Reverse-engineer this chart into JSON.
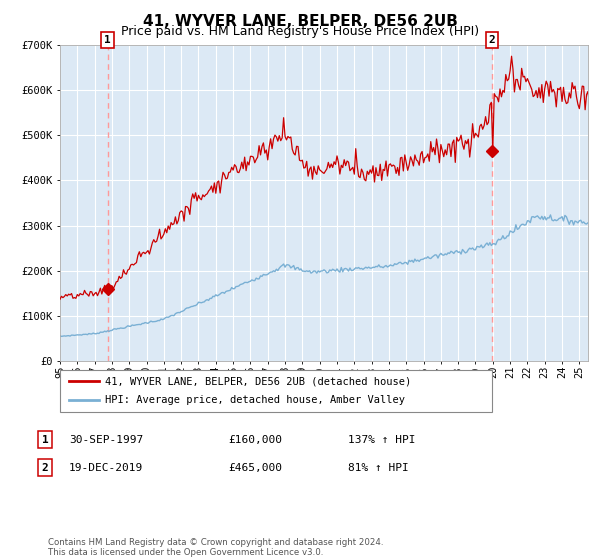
{
  "title": "41, WYVER LANE, BELPER, DE56 2UB",
  "subtitle": "Price paid vs. HM Land Registry's House Price Index (HPI)",
  "ylim": [
    0,
    700000
  ],
  "yticks": [
    0,
    100000,
    200000,
    300000,
    400000,
    500000,
    600000,
    700000
  ],
  "ytick_labels": [
    "£0",
    "£100K",
    "£200K",
    "£300K",
    "£400K",
    "£500K",
    "£600K",
    "£700K"
  ],
  "xlim_start": 1995.0,
  "xlim_end": 2025.5,
  "property_color": "#cc0000",
  "hpi_color": "#7ab0d4",
  "dashed_line_color": "#ff9999",
  "marker_color": "#cc0000",
  "plot_bg_color": "#dce9f5",
  "legend_property_label": "41, WYVER LANE, BELPER, DE56 2UB (detached house)",
  "legend_hpi_label": "HPI: Average price, detached house, Amber Valley",
  "point1_label": "1",
  "point1_date": "30-SEP-1997",
  "point1_price": "£160,000",
  "point1_hpi": "137% ↑ HPI",
  "point1_x": 1997.75,
  "point1_y": 160000,
  "point2_label": "2",
  "point2_date": "19-DEC-2019",
  "point2_price": "£465,000",
  "point2_hpi": "81% ↑ HPI",
  "point2_x": 2019.96,
  "point2_y": 465000,
  "footnote": "Contains HM Land Registry data © Crown copyright and database right 2024.\nThis data is licensed under the Open Government Licence v3.0.",
  "background_color": "#ffffff",
  "grid_color": "#ffffff",
  "title_fontsize": 11,
  "subtitle_fontsize": 9,
  "tick_fontsize": 7.5
}
